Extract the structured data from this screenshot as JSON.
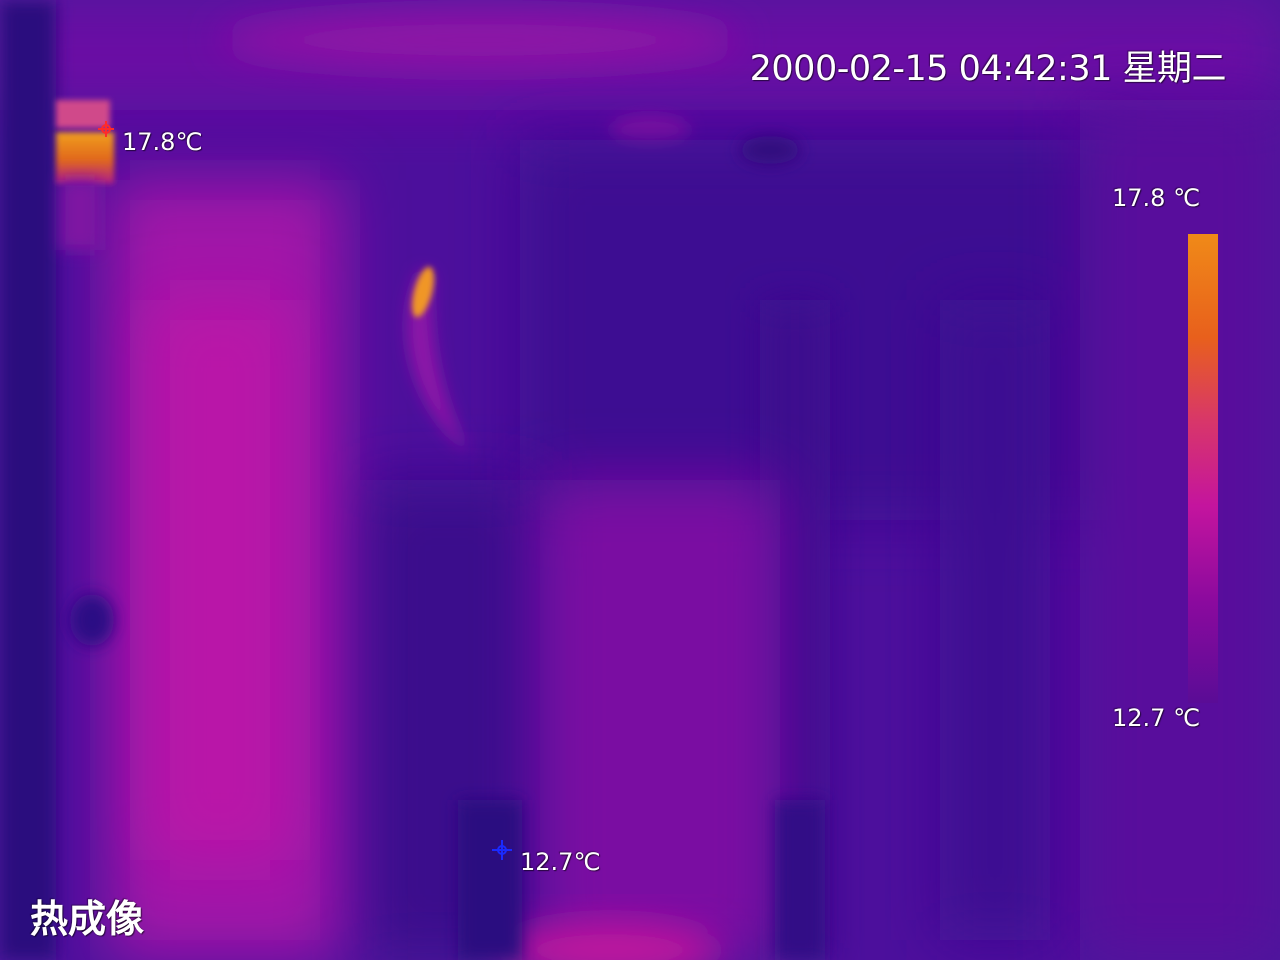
{
  "overlay": {
    "timestamp": "2000-02-15 04:42:31 星期二",
    "mode_label": "热成像"
  },
  "scale": {
    "max_label": "17.8 ℃",
    "min_label": "12.7 ℃",
    "max_value": 17.8,
    "min_value": 12.7,
    "palette": "ironbow",
    "colors": [
      "#f08a18",
      "#e8601c",
      "#d8366a",
      "#c4149e",
      "#8c0a9e",
      "#5a0c96"
    ]
  },
  "measurements": {
    "hot_spot": {
      "label": "17.8℃",
      "value": 17.8,
      "marker_color": "#ff2a2a",
      "marker_icon": "crosshair-hot-icon"
    },
    "cold_spot": {
      "label": "12.7℃",
      "value": 12.7,
      "marker_color": "#1a2aff",
      "marker_icon": "crosshair-cold-icon"
    }
  }
}
